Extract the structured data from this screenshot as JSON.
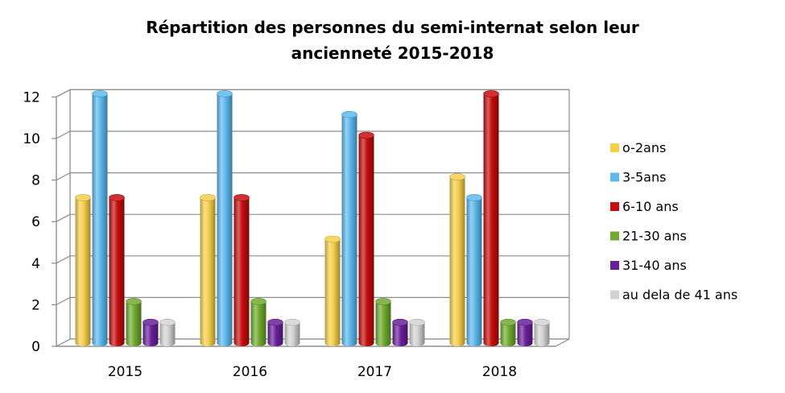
{
  "chart_data": {
    "type": "bar",
    "title_line1": "Répartition des personnes du semi-internat selon leur",
    "title_line2": "ancienneté 2015-2018",
    "xlabel": "",
    "ylabel": "",
    "ylim": [
      0,
      12
    ],
    "yticks": [
      "0",
      "2",
      "4",
      "6",
      "8",
      "10",
      "12"
    ],
    "grid": true,
    "legend_position": "right",
    "categories": [
      "2015",
      "2016",
      "2017",
      "2018"
    ],
    "series": [
      {
        "name": "o-2ans",
        "values": [
          7,
          7,
          5,
          8
        ],
        "color": "#F5CF4A"
      },
      {
        "name": "3-5ans",
        "values": [
          12,
          12,
          11,
          7
        ],
        "color": "#5DB8EE"
      },
      {
        "name": "6-10 ans",
        "values": [
          7,
          7,
          10,
          12
        ],
        "color": "#C40D0D"
      },
      {
        "name": "21-30 ans",
        "values": [
          2,
          2,
          2,
          1
        ],
        "color": "#6FAA2E"
      },
      {
        "name": "31-40 ans",
        "values": [
          1,
          1,
          1,
          1
        ],
        "color": "#6A1F9A"
      },
      {
        "name": "au dela de 41 ans",
        "values": [
          1,
          1,
          1,
          1
        ],
        "color": "#D3D3D3"
      }
    ]
  }
}
